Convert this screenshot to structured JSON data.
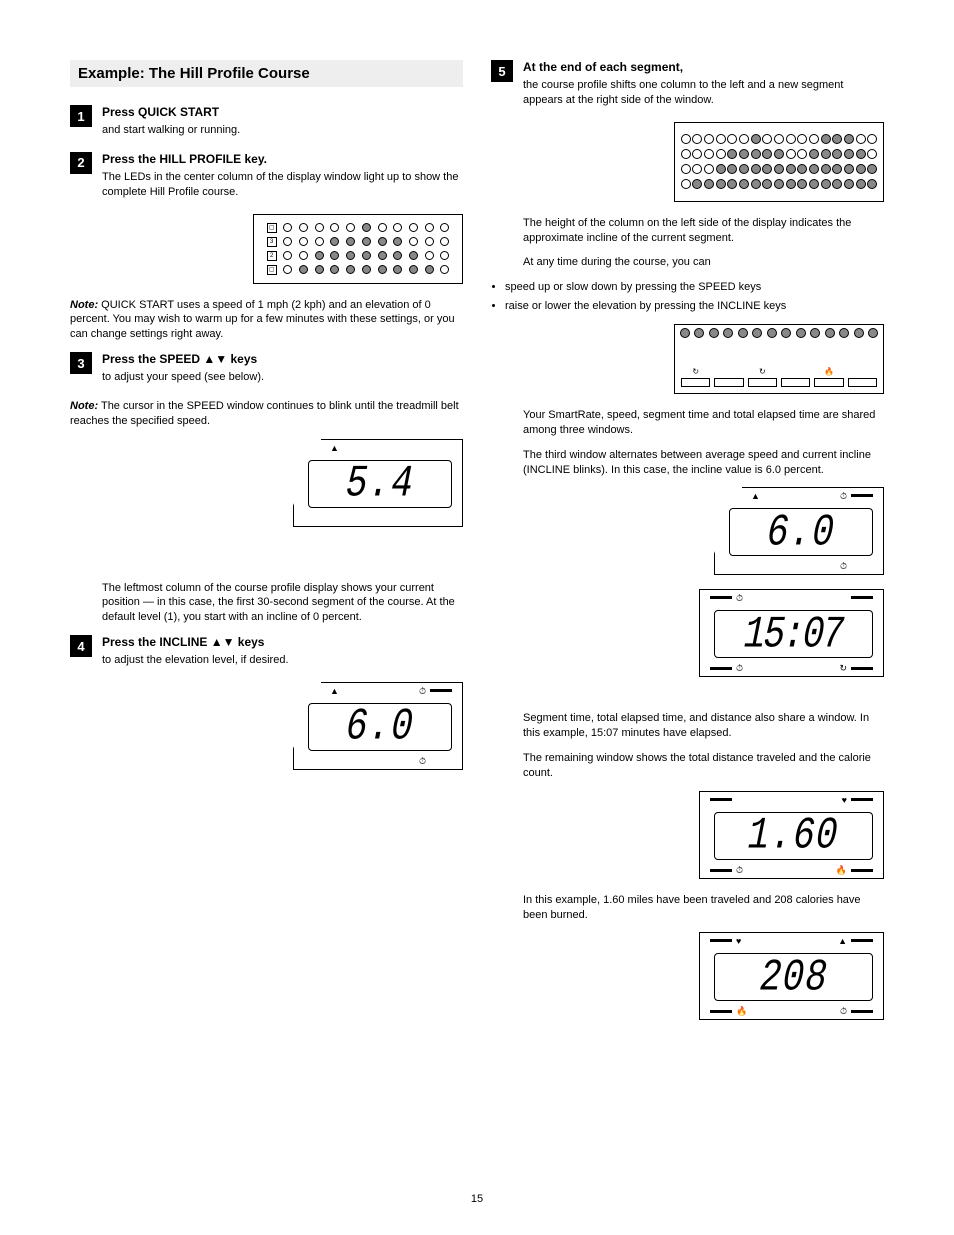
{
  "page_number": "15",
  "title": "Example: The Hill Profile Course",
  "left": {
    "step1": {
      "num": "1",
      "head": "Press QUICK START",
      "text": "and start walking or running."
    },
    "step2": {
      "num": "2",
      "head": "Press the HILL PROFILE key.",
      "text": "The LEDs in the center column of the display window light up to show the complete Hill Profile course."
    },
    "step3": {
      "num": "3",
      "head": "Press the SPEED ▲▼ keys",
      "text": "to adjust your speed (see below)."
    },
    "note1_label": "Note:",
    "note1": "QUICK START uses a speed of 1 mph (2 kph) and an elevation of 0 percent. You may wish to warm up for a few minutes with these settings, or you can change settings right away.",
    "note2_label": "Note:",
    "note2": "The cursor in the SPEED window continues to blink until the treadmill belt reaches the specified speed.",
    "step4": {
      "num": "4",
      "head": "Press the INCLINE ▲▼ keys",
      "text": "to adjust the elevation level, if desired."
    },
    "para_after_step4": "The leftmost column of the course profile display shows your current position — in this case, the first 30-second segment of the course. At the default level (1), you start with an incline of 0 percent.",
    "lcd_speed": "5.4",
    "lcd_incline": "6.0"
  },
  "right": {
    "step5": {
      "num": "5",
      "head": "At the end of each segment,",
      "text": "the course profile shifts one column to the left and a new segment appears at the right side of the window.",
      "text2": "The height of the column on the left side of the display indicates the approximate incline of the current segment."
    },
    "para_keys": "At any time during the course, you can",
    "bullets": [
      "speed up or slow down by pressing the SPEED keys",
      "raise or lower the elevation by pressing the INCLINE keys"
    ],
    "para_shared": "Your SmartRate, speed, segment time and total elapsed time are shared among three windows.",
    "para_incline": "The third window alternates between average speed and current incline (INCLINE blinks). In this case, the incline value is 6.0 percent.",
    "para_distance": "Segment time, total elapsed time, and distance also share a window. In this example, 15:07 minutes have elapsed.",
    "para_cals": "In this example, 1.60 miles have been traveled and 208 calories have been burned.",
    "para_last": "The remaining window shows the total distance traveled and the calorie count.",
    "lcd_incline": "6.0",
    "lcd_time": "15:07",
    "lcd_dist": "1.60",
    "lcd_cal": "208"
  },
  "led_pattern_left": [
    [
      0,
      0,
      0,
      0,
      0,
      1,
      0,
      0,
      0,
      0,
      0
    ],
    [
      0,
      0,
      0,
      1,
      1,
      1,
      1,
      1,
      0,
      0,
      0
    ],
    [
      0,
      0,
      1,
      1,
      1,
      1,
      1,
      1,
      1,
      0,
      0
    ],
    [
      0,
      1,
      1,
      1,
      1,
      1,
      1,
      1,
      1,
      1,
      0
    ]
  ],
  "led_labels": [
    "▢",
    "3",
    "2",
    "▢"
  ],
  "led_pattern_right": [
    [
      0,
      0,
      0,
      0,
      0,
      0,
      1,
      0,
      0,
      0,
      0,
      0,
      1,
      1,
      1,
      0,
      0
    ],
    [
      0,
      0,
      0,
      0,
      1,
      1,
      1,
      1,
      1,
      0,
      0,
      1,
      1,
      1,
      1,
      1,
      0
    ],
    [
      0,
      0,
      0,
      1,
      1,
      1,
      1,
      1,
      1,
      1,
      1,
      1,
      1,
      1,
      1,
      1,
      1
    ],
    [
      0,
      1,
      1,
      1,
      1,
      1,
      1,
      1,
      1,
      1,
      1,
      1,
      1,
      1,
      1,
      1,
      1
    ]
  ],
  "led_pattern_keys_top": [
    1,
    1,
    1,
    1,
    1,
    1,
    1,
    1,
    1,
    1,
    1,
    1,
    1,
    1
  ],
  "colors": {
    "bg": "#ffffff",
    "text": "#000000",
    "title_bg": "#eeeeee",
    "led_on": "#888888"
  }
}
